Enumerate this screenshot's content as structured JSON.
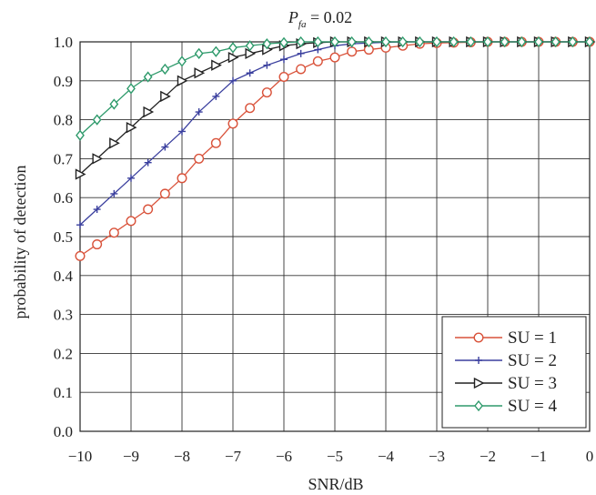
{
  "chart_data": {
    "type": "line",
    "title_main": "P",
    "title_sub": "fa",
    "title_rest": " = 0.02",
    "xlabel": "SNR/dB",
    "ylabel": "probability of detection",
    "xlim": [
      -10,
      0
    ],
    "ylim": [
      0,
      1
    ],
    "xticks": [
      -10,
      -9,
      -8,
      -7,
      -6,
      -5,
      -4,
      -3,
      -2,
      -1,
      0
    ],
    "xtick_labels": [
      "−10",
      "−9",
      "−8",
      "−7",
      "−6",
      "−5",
      "−4",
      "−3",
      "−2",
      "−1",
      "0"
    ],
    "yticks": [
      0,
      0.1,
      0.2,
      0.3,
      0.4,
      0.5,
      0.6,
      0.7,
      0.8,
      0.9,
      1.0
    ],
    "ytick_labels": [
      "0.0",
      "0.1",
      "0.2",
      "0.3",
      "0.4",
      "0.5",
      "0.6",
      "0.7",
      "0.8",
      "0.9",
      "1.0"
    ],
    "grid": true,
    "legend_position": "bottom-right",
    "x": [
      -10,
      -9.667,
      -9.333,
      -9,
      -8.667,
      -8.333,
      -8,
      -7.667,
      -7.333,
      -7,
      -6.667,
      -6.333,
      -6,
      -5.667,
      -5.333,
      -5,
      -4.667,
      -4.333,
      -4,
      -3.667,
      -3.333,
      -3,
      -2.667,
      -2.333,
      -2,
      -1.667,
      -1.333,
      -1,
      -0.667,
      -0.333,
      0
    ],
    "series": [
      {
        "name": "SU = 1",
        "color": "#d9523a",
        "marker": "circle",
        "values": [
          0.45,
          0.48,
          0.51,
          0.54,
          0.57,
          0.61,
          0.65,
          0.7,
          0.74,
          0.79,
          0.83,
          0.87,
          0.91,
          0.93,
          0.95,
          0.96,
          0.975,
          0.98,
          0.985,
          0.99,
          0.995,
          0.997,
          0.998,
          0.999,
          1.0,
          1.0,
          1.0,
          1.0,
          1.0,
          1.0,
          1.0
        ]
      },
      {
        "name": "SU = 2",
        "color": "#3a3f9e",
        "marker": "plus",
        "values": [
          0.53,
          0.57,
          0.61,
          0.65,
          0.69,
          0.73,
          0.77,
          0.82,
          0.86,
          0.9,
          0.92,
          0.94,
          0.955,
          0.97,
          0.98,
          0.99,
          0.995,
          0.997,
          0.999,
          1.0,
          1.0,
          1.0,
          1.0,
          1.0,
          1.0,
          1.0,
          1.0,
          1.0,
          1.0,
          1.0,
          1.0
        ]
      },
      {
        "name": "SU = 3",
        "color": "#222222",
        "marker": "triangle",
        "values": [
          0.66,
          0.7,
          0.74,
          0.78,
          0.82,
          0.86,
          0.9,
          0.92,
          0.94,
          0.96,
          0.97,
          0.98,
          0.99,
          0.995,
          0.998,
          1.0,
          1.0,
          1.0,
          1.0,
          1.0,
          1.0,
          1.0,
          1.0,
          1.0,
          1.0,
          1.0,
          1.0,
          1.0,
          1.0,
          1.0,
          1.0
        ]
      },
      {
        "name": "SU = 4",
        "color": "#2e9a6b",
        "marker": "diamond",
        "values": [
          0.76,
          0.8,
          0.84,
          0.88,
          0.91,
          0.93,
          0.95,
          0.97,
          0.975,
          0.985,
          0.99,
          0.995,
          0.998,
          1.0,
          1.0,
          1.0,
          1.0,
          1.0,
          1.0,
          1.0,
          1.0,
          1.0,
          1.0,
          1.0,
          1.0,
          1.0,
          1.0,
          1.0,
          1.0,
          1.0,
          1.0
        ]
      }
    ]
  }
}
